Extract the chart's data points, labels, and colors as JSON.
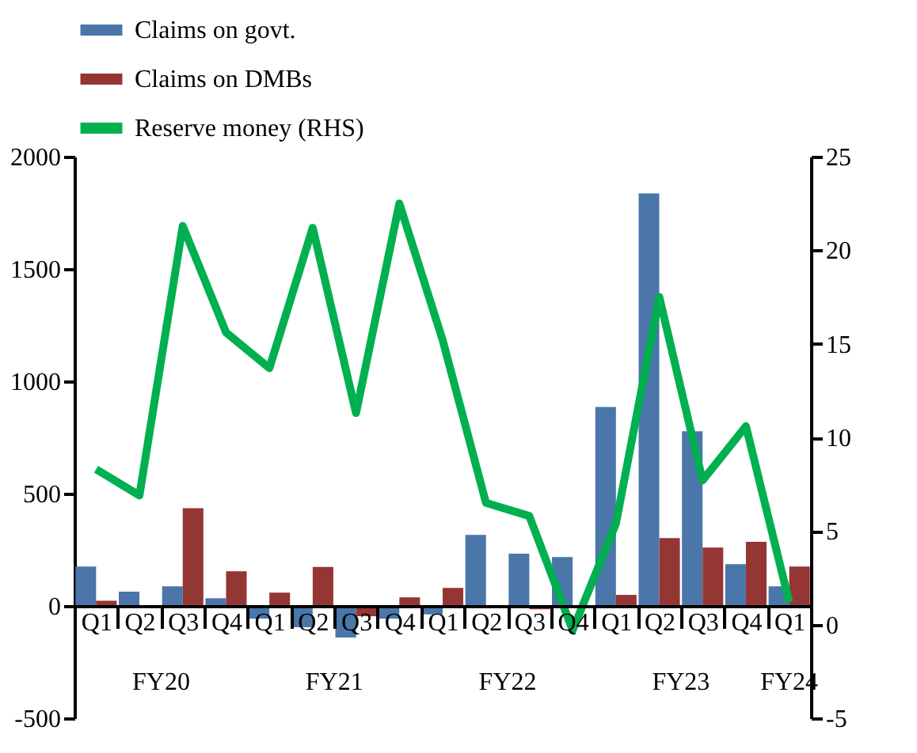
{
  "chart_data": {
    "type": "bar",
    "categories": [
      "Q1",
      "Q2",
      "Q3",
      "Q4",
      "Q1",
      "Q2",
      "Q3",
      "Q4",
      "Q1",
      "Q2",
      "Q3",
      "Q4",
      "Q1",
      "Q2",
      "Q3",
      "Q4",
      "Q1"
    ],
    "series": [
      {
        "name": "Claims on govt.",
        "color": "#4a76aa",
        "values": [
          175,
          63,
          87,
          34,
          -57,
          -95,
          -141,
          -57,
          -38,
          316,
          232,
          217,
          886,
          1836,
          777,
          186,
          87
        ]
      },
      {
        "name": "Claims on DMBs",
        "color": "#943634",
        "values": [
          23,
          0,
          435,
          154,
          59,
          173,
          -46,
          38,
          80,
          0,
          -15,
          -5,
          49,
          302,
          260,
          285,
          175
        ]
      },
      {
        "name": "Reserve money (RHS)",
        "type": "line",
        "axis": "y2",
        "color": "#00b050",
        "values": [
          8.3,
          6.9,
          21.3,
          15.6,
          13.7,
          21.2,
          11.3,
          22.5,
          15.2,
          6.5,
          5.8,
          -0.3,
          5.4,
          17.5,
          7.7,
          10.6,
          1.2
        ]
      }
    ],
    "ylim": [
      -500,
      2000
    ],
    "yticks": [
      -500,
      0,
      500,
      1000,
      1500,
      2000
    ],
    "y2lim": [
      -5,
      25
    ],
    "y2ticks": [
      -5,
      0,
      5,
      10,
      15,
      20,
      25
    ],
    "annotations": [
      "FY20",
      "FY21",
      "FY22",
      "FY23",
      "FY24"
    ],
    "legend": "top",
    "grid": false
  }
}
